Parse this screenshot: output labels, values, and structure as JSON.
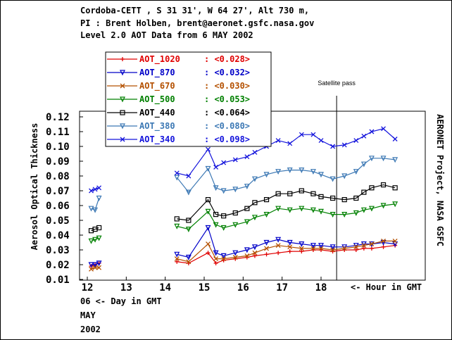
{
  "header": {
    "line1": "Cordoba-CETT , S 31 31', W 64 27', Alt 730 m,",
    "line2": "PI : Brent Holben, brent@aeronet.gsfc.nasa.gov",
    "line3": "Level 2.0 AOT Data from 6 MAY 2002"
  },
  "date_block": {
    "line1": "06  <- Day in GMT",
    "line2": "MAY",
    "line3": "2002"
  },
  "chart_data": {
    "type": "line",
    "ylabel": "Aerosol Optical Thickness",
    "right_label": "AERONET Project, NASA GSFC",
    "xlabel_inline": "<- Hour in GMT",
    "annotation": "Satellite pass",
    "annotation_x": 18.4,
    "xlim": [
      11.8,
      20.0
    ],
    "ylim": [
      0.01,
      0.12
    ],
    "x_ticks": [
      12,
      13,
      14,
      15,
      16,
      17,
      18
    ],
    "x_tick_labels": [
      "12",
      "13",
      "14",
      "15",
      "16",
      "17",
      "18"
    ],
    "y_ticks": [
      0.01,
      0.02,
      0.03,
      0.04,
      0.05,
      0.06,
      0.07,
      0.08,
      0.09,
      0.1,
      0.11,
      0.12
    ],
    "y_tick_labels": [
      "0.01",
      "0.02",
      "0.03",
      "0.04",
      "0.05",
      "0.06",
      "0.07",
      "0.08",
      "0.09",
      "0.10",
      "0.11",
      "0.12"
    ],
    "legend_position": "top-left",
    "series": [
      {
        "name": "AOT_1020",
        "mean_label": ": <0.028>",
        "color": "#e00000",
        "marker": "plus",
        "x": [
          12.1,
          12.2,
          12.3,
          14.3,
          14.6,
          15.1,
          15.3,
          15.5,
          15.8,
          16.1,
          16.3,
          16.6,
          16.9,
          17.2,
          17.5,
          17.8,
          18.0,
          18.3,
          18.6,
          18.9,
          19.1,
          19.3,
          19.6,
          19.9
        ],
        "y": [
          0.019,
          0.02,
          0.021,
          0.022,
          0.021,
          0.028,
          0.021,
          0.023,
          0.024,
          0.025,
          0.026,
          0.027,
          0.028,
          0.029,
          0.029,
          0.03,
          0.03,
          0.029,
          0.03,
          0.03,
          0.031,
          0.031,
          0.032,
          0.033
        ]
      },
      {
        "name": "AOT_870",
        "mean_label": ": <0.032>",
        "color": "#0000c8",
        "marker": "tri",
        "x": [
          12.1,
          12.2,
          12.3,
          14.3,
          14.6,
          15.1,
          15.3,
          15.5,
          15.8,
          16.1,
          16.3,
          16.6,
          16.9,
          17.2,
          17.5,
          17.8,
          18.0,
          18.3,
          18.6,
          18.9,
          19.1,
          19.3,
          19.6,
          19.9
        ],
        "y": [
          0.02,
          0.02,
          0.021,
          0.027,
          0.025,
          0.045,
          0.028,
          0.026,
          0.028,
          0.03,
          0.032,
          0.035,
          0.037,
          0.035,
          0.034,
          0.033,
          0.033,
          0.032,
          0.032,
          0.033,
          0.034,
          0.034,
          0.035,
          0.034
        ]
      },
      {
        "name": "AOT_670",
        "mean_label": ": <0.030>",
        "color": "#b45000",
        "marker": "x",
        "x": [
          12.1,
          12.2,
          12.3,
          14.3,
          14.6,
          15.1,
          15.3,
          15.5,
          15.8,
          16.1,
          16.3,
          16.6,
          16.9,
          17.2,
          17.5,
          17.8,
          18.0,
          18.3,
          18.6,
          18.9,
          19.1,
          19.3,
          19.6,
          19.9
        ],
        "y": [
          0.017,
          0.018,
          0.018,
          0.024,
          0.022,
          0.034,
          0.024,
          0.024,
          0.025,
          0.026,
          0.028,
          0.031,
          0.033,
          0.032,
          0.031,
          0.031,
          0.031,
          0.03,
          0.031,
          0.032,
          0.033,
          0.034,
          0.036,
          0.036
        ]
      },
      {
        "name": "AOT_500",
        "mean_label": ": <0.053>",
        "color": "#008000",
        "marker": "tri",
        "x": [
          12.1,
          12.2,
          12.3,
          14.3,
          14.6,
          15.1,
          15.3,
          15.5,
          15.8,
          16.1,
          16.3,
          16.6,
          16.9,
          17.2,
          17.5,
          17.8,
          18.0,
          18.3,
          18.6,
          18.9,
          19.1,
          19.3,
          19.6,
          19.9
        ],
        "y": [
          0.036,
          0.037,
          0.038,
          0.046,
          0.044,
          0.056,
          0.047,
          0.045,
          0.047,
          0.049,
          0.052,
          0.054,
          0.058,
          0.057,
          0.058,
          0.057,
          0.056,
          0.054,
          0.054,
          0.055,
          0.057,
          0.058,
          0.06,
          0.061
        ]
      },
      {
        "name": "AOT_440",
        "mean_label": ": <0.064>",
        "color": "#000000",
        "marker": "square",
        "x": [
          12.1,
          12.2,
          12.3,
          14.3,
          14.6,
          15.1,
          15.3,
          15.5,
          15.8,
          16.1,
          16.3,
          16.6,
          16.9,
          17.2,
          17.5,
          17.8,
          18.0,
          18.3,
          18.6,
          18.9,
          19.1,
          19.3,
          19.6,
          19.9
        ],
        "y": [
          0.043,
          0.044,
          0.045,
          0.051,
          0.05,
          0.064,
          0.054,
          0.053,
          0.055,
          0.058,
          0.062,
          0.064,
          0.068,
          0.068,
          0.07,
          0.068,
          0.066,
          0.065,
          0.064,
          0.065,
          0.069,
          0.072,
          0.074,
          0.072
        ]
      },
      {
        "name": "AOT_380",
        "mean_label": ": <0.080>",
        "color": "#3c78b4",
        "marker": "tri",
        "x": [
          12.1,
          12.2,
          12.3,
          14.3,
          14.6,
          15.1,
          15.3,
          15.5,
          15.8,
          16.1,
          16.3,
          16.6,
          16.9,
          17.2,
          17.5,
          17.8,
          18.0,
          18.3,
          18.6,
          18.9,
          19.1,
          19.3,
          19.6,
          19.9
        ],
        "y": [
          0.058,
          0.057,
          0.065,
          0.079,
          0.069,
          0.085,
          0.072,
          0.07,
          0.071,
          0.073,
          0.078,
          0.081,
          0.083,
          0.084,
          0.084,
          0.083,
          0.081,
          0.078,
          0.08,
          0.083,
          0.088,
          0.092,
          0.092,
          0.091
        ]
      },
      {
        "name": "AOT_340",
        "mean_label": ": <0.098>",
        "color": "#1414dc",
        "marker": "x",
        "x": [
          12.1,
          12.2,
          12.3,
          14.3,
          14.6,
          15.1,
          15.3,
          15.5,
          15.8,
          16.1,
          16.3,
          16.6,
          16.9,
          17.2,
          17.5,
          17.8,
          18.0,
          18.3,
          18.6,
          18.9,
          19.1,
          19.3,
          19.6,
          19.9
        ],
        "y": [
          0.07,
          0.071,
          0.072,
          0.082,
          0.08,
          0.098,
          0.086,
          0.089,
          0.091,
          0.093,
          0.096,
          0.1,
          0.104,
          0.102,
          0.108,
          0.108,
          0.104,
          0.1,
          0.101,
          0.104,
          0.107,
          0.11,
          0.112,
          0.105
        ]
      }
    ]
  }
}
